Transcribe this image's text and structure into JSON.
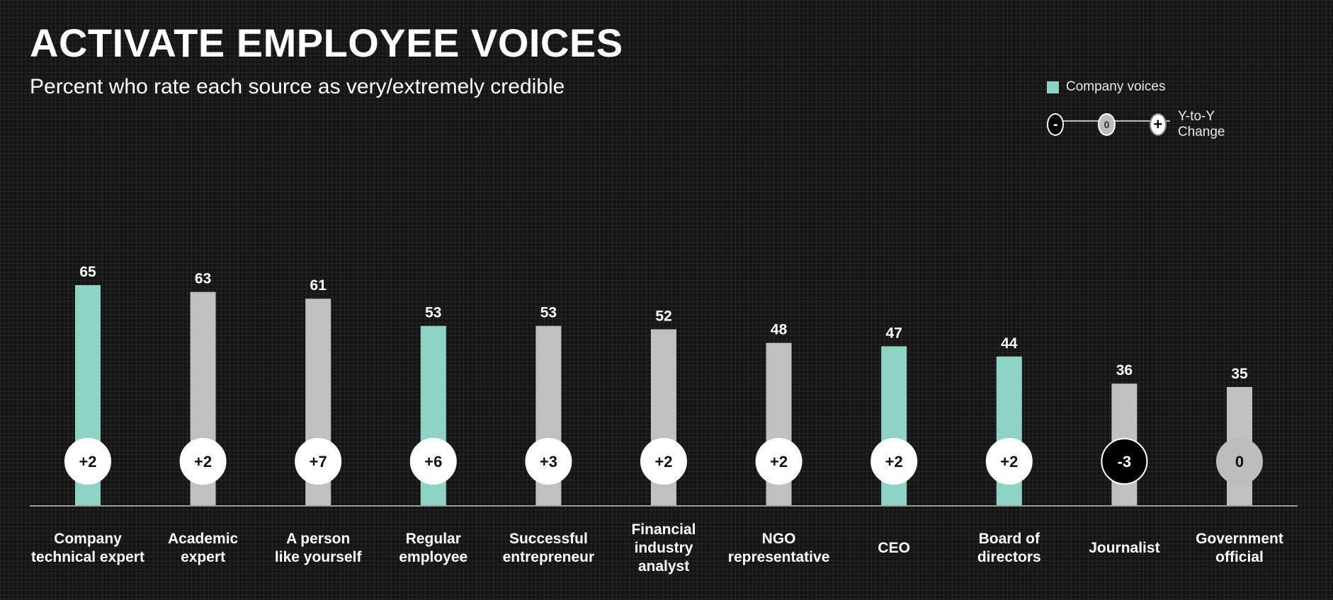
{
  "title": "ACTIVATE EMPLOYEE VOICES",
  "subtitle": "Percent who rate each source as very/extremely credible",
  "legend": {
    "company_voices_label": "Company voices",
    "change_label": "Y-to-Y Change",
    "minus_symbol": "-",
    "zero_symbol": "0",
    "plus_symbol": "+"
  },
  "colors": {
    "company_voices": "#8fd3c5",
    "other": "#c0c0c0",
    "background": "#141414"
  },
  "chart_data": {
    "type": "bar",
    "title": "ACTIVATE EMPLOYEE VOICES",
    "subtitle": "Percent who rate each source as very/extremely credible",
    "categories": [
      [
        "Company",
        "technical expert"
      ],
      [
        "Academic",
        "expert"
      ],
      [
        "A person",
        "like yourself"
      ],
      [
        "Regular",
        "employee"
      ],
      [
        "Successful",
        "entrepreneur"
      ],
      [
        "Financial",
        "industry",
        "analyst"
      ],
      [
        "NGO",
        "representative"
      ],
      [
        "CEO"
      ],
      [
        "Board of",
        "directors"
      ],
      [
        "Journalist"
      ],
      [
        "Government",
        "official"
      ]
    ],
    "values": [
      65,
      63,
      61,
      53,
      53,
      52,
      48,
      47,
      44,
      36,
      35
    ],
    "company_voice": [
      true,
      false,
      false,
      true,
      false,
      false,
      false,
      true,
      true,
      false,
      false
    ],
    "changes": [
      "+2",
      "+2",
      "+7",
      "+6",
      "+3",
      "+2",
      "+2",
      "+2",
      "+2",
      "-3",
      "0"
    ],
    "legend": [
      "Company voices",
      "Y-to-Y Change"
    ],
    "ylim": [
      0,
      100
    ],
    "grid": false
  }
}
